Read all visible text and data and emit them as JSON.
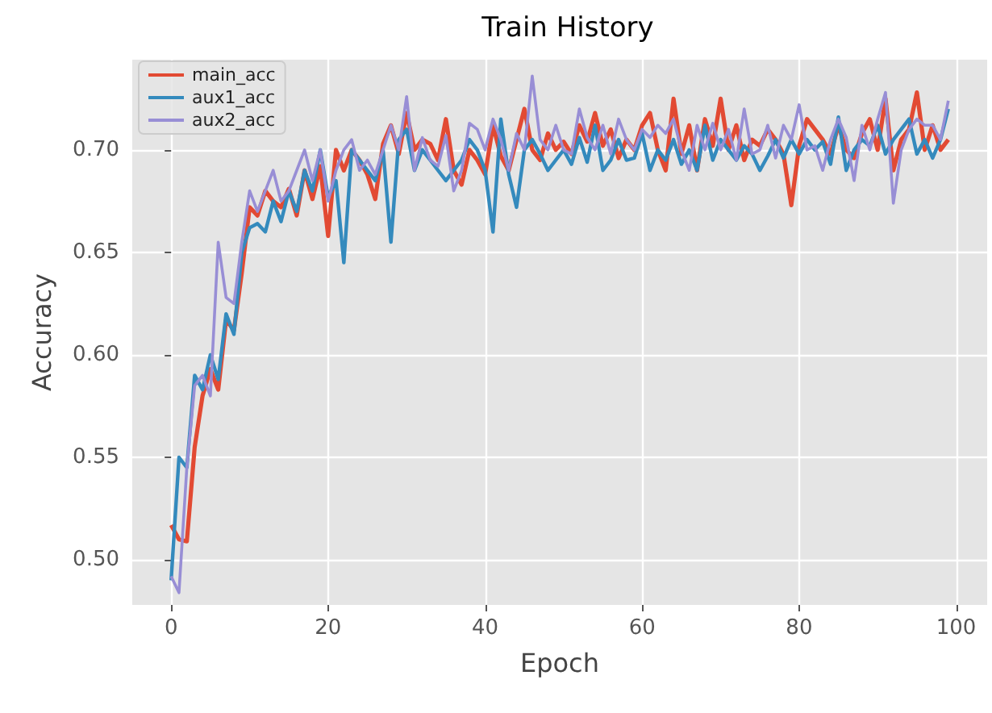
{
  "chart_data": {
    "type": "line",
    "title": "Train History",
    "xlabel": "Epoch",
    "ylabel": "Accuracy",
    "x": [
      0,
      1,
      2,
      3,
      4,
      5,
      6,
      7,
      8,
      9,
      10,
      11,
      12,
      13,
      14,
      15,
      16,
      17,
      18,
      19,
      20,
      21,
      22,
      23,
      24,
      25,
      26,
      27,
      28,
      29,
      30,
      31,
      32,
      33,
      34,
      35,
      36,
      37,
      38,
      39,
      40,
      41,
      42,
      43,
      44,
      45,
      46,
      47,
      48,
      49,
      50,
      51,
      52,
      53,
      54,
      55,
      56,
      57,
      58,
      59,
      60,
      61,
      62,
      63,
      64,
      65,
      66,
      67,
      68,
      69,
      70,
      71,
      72,
      73,
      74,
      75,
      76,
      77,
      78,
      79,
      80,
      81,
      82,
      83,
      84,
      85,
      86,
      87,
      88,
      89,
      90,
      91,
      92,
      93,
      94,
      95,
      96,
      97,
      98,
      99
    ],
    "series": [
      {
        "name": "main_acc",
        "color": "#e24a33",
        "values": [
          0.517,
          0.51,
          0.509,
          0.555,
          0.58,
          0.593,
          0.583,
          0.617,
          0.612,
          0.64,
          0.672,
          0.668,
          0.68,
          0.675,
          0.672,
          0.681,
          0.668,
          0.69,
          0.676,
          0.692,
          0.658,
          0.7,
          0.69,
          0.7,
          0.695,
          0.688,
          0.676,
          0.703,
          0.712,
          0.698,
          0.718,
          0.7,
          0.705,
          0.703,
          0.695,
          0.715,
          0.69,
          0.683,
          0.7,
          0.695,
          0.688,
          0.712,
          0.697,
          0.69,
          0.705,
          0.72,
          0.7,
          0.695,
          0.708,
          0.7,
          0.704,
          0.698,
          0.712,
          0.704,
          0.718,
          0.702,
          0.71,
          0.696,
          0.705,
          0.7,
          0.712,
          0.718,
          0.7,
          0.69,
          0.725,
          0.698,
          0.712,
          0.69,
          0.715,
          0.702,
          0.725,
          0.7,
          0.712,
          0.695,
          0.705,
          0.702,
          0.71,
          0.705,
          0.698,
          0.673,
          0.702,
          0.715,
          0.71,
          0.705,
          0.698,
          0.712,
          0.7,
          0.696,
          0.708,
          0.715,
          0.7,
          0.725,
          0.69,
          0.705,
          0.71,
          0.728,
          0.7,
          0.712,
          0.7,
          0.705
        ]
      },
      {
        "name": "aux1_acc",
        "color": "#348abd",
        "values": [
          0.49,
          0.55,
          0.545,
          0.59,
          0.583,
          0.6,
          0.588,
          0.62,
          0.61,
          0.65,
          0.662,
          0.664,
          0.66,
          0.675,
          0.665,
          0.68,
          0.67,
          0.69,
          0.68,
          0.7,
          0.677,
          0.685,
          0.645,
          0.7,
          0.695,
          0.69,
          0.685,
          0.7,
          0.655,
          0.705,
          0.71,
          0.69,
          0.7,
          0.695,
          0.69,
          0.685,
          0.69,
          0.695,
          0.705,
          0.7,
          0.69,
          0.66,
          0.715,
          0.688,
          0.672,
          0.7,
          0.705,
          0.698,
          0.69,
          0.695,
          0.7,
          0.693,
          0.706,
          0.694,
          0.712,
          0.69,
          0.695,
          0.705,
          0.695,
          0.696,
          0.708,
          0.69,
          0.7,
          0.695,
          0.705,
          0.693,
          0.7,
          0.69,
          0.712,
          0.695,
          0.705,
          0.7,
          0.695,
          0.702,
          0.698,
          0.69,
          0.697,
          0.705,
          0.696,
          0.705,
          0.698,
          0.705,
          0.7,
          0.704,
          0.693,
          0.716,
          0.69,
          0.7,
          0.705,
          0.702,
          0.712,
          0.698,
          0.705,
          0.71,
          0.715,
          0.698,
          0.705,
          0.696,
          0.705,
          0.72
        ]
      },
      {
        "name": "aux2_acc",
        "color": "#988ed5",
        "values": [
          0.492,
          0.484,
          0.545,
          0.585,
          0.59,
          0.58,
          0.655,
          0.628,
          0.625,
          0.655,
          0.68,
          0.67,
          0.68,
          0.69,
          0.675,
          0.68,
          0.69,
          0.7,
          0.685,
          0.7,
          0.675,
          0.69,
          0.7,
          0.705,
          0.69,
          0.695,
          0.688,
          0.7,
          0.712,
          0.7,
          0.726,
          0.69,
          0.706,
          0.695,
          0.692,
          0.707,
          0.68,
          0.69,
          0.713,
          0.71,
          0.7,
          0.715,
          0.705,
          0.69,
          0.708,
          0.7,
          0.736,
          0.705,
          0.7,
          0.712,
          0.7,
          0.698,
          0.72,
          0.706,
          0.7,
          0.712,
          0.698,
          0.715,
          0.705,
          0.7,
          0.71,
          0.706,
          0.712,
          0.708,
          0.715,
          0.7,
          0.69,
          0.712,
          0.7,
          0.713,
          0.7,
          0.71,
          0.695,
          0.72,
          0.698,
          0.7,
          0.712,
          0.696,
          0.712,
          0.705,
          0.722,
          0.7,
          0.702,
          0.69,
          0.705,
          0.715,
          0.706,
          0.685,
          0.712,
          0.7,
          0.715,
          0.728,
          0.674,
          0.7,
          0.71,
          0.715,
          0.712,
          0.712,
          0.705,
          0.724
        ]
      }
    ],
    "xlim": [
      -4.95,
      103.95
    ],
    "xticks": [
      0,
      20,
      40,
      60,
      80,
      100
    ],
    "ylim": [
      0.478,
      0.744
    ],
    "yticks": [
      {
        "value": 0.5,
        "label": "0.50"
      },
      {
        "value": 0.55,
        "label": "0.55"
      },
      {
        "value": 0.6,
        "label": "0.60"
      },
      {
        "value": 0.65,
        "label": "0.65"
      },
      {
        "value": 0.7,
        "label": "0.70"
      }
    ],
    "grid": true,
    "legend": "top left",
    "marker": "none",
    "line_style": "solid"
  }
}
